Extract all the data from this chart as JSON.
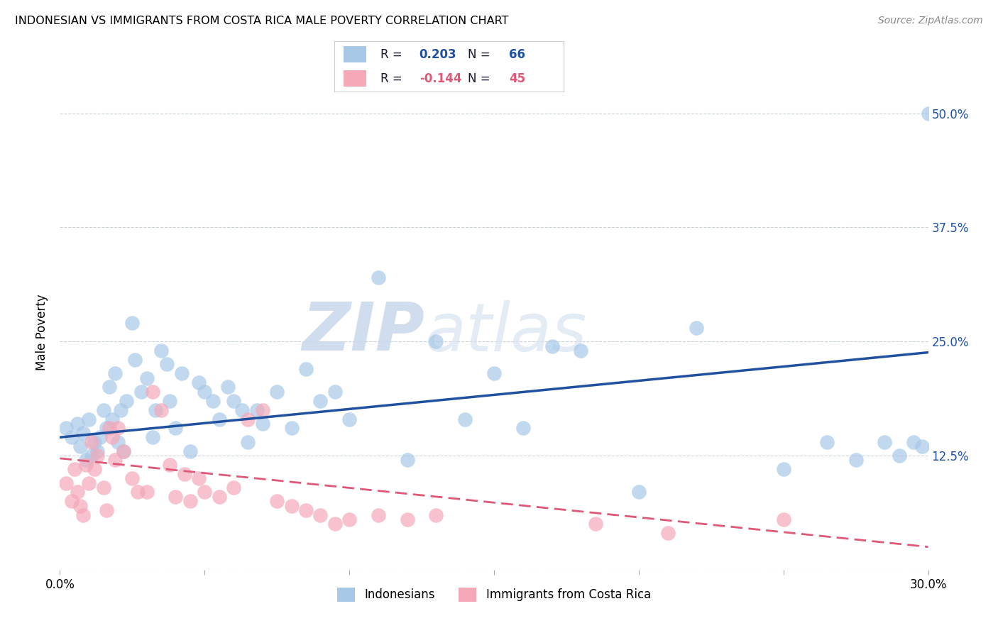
{
  "title": "INDONESIAN VS IMMIGRANTS FROM COSTA RICA MALE POVERTY CORRELATION CHART",
  "source": "Source: ZipAtlas.com",
  "ylabel": "Male Poverty",
  "ytick_vals": [
    0.0,
    0.125,
    0.25,
    0.375,
    0.5
  ],
  "ytick_labels": [
    "",
    "12.5%",
    "25.0%",
    "37.5%",
    "50.0%"
  ],
  "xtick_vals": [
    0.0,
    0.05,
    0.1,
    0.15,
    0.2,
    0.25,
    0.3
  ],
  "xtick_labels": [
    "0.0%",
    "",
    "",
    "",
    "",
    "",
    "30.0%"
  ],
  "legend_series1": "Indonesians",
  "legend_series2": "Immigrants from Costa Rica",
  "color_blue": "#A8C8E8",
  "color_pink": "#F4A8B8",
  "color_blue_line": "#2050A0",
  "color_pink_line": "#E05878",
  "color_ytick": "#2050A0",
  "color_grid": "#C8D0D8",
  "watermark_zip": "ZIP",
  "watermark_atlas": "atlas",
  "xmin": 0.0,
  "xmax": 0.3,
  "ymin": 0.0,
  "ymax": 0.52,
  "blue_line_x0": 0.0,
  "blue_line_y0": 0.145,
  "blue_line_x1": 0.3,
  "blue_line_y1": 0.238,
  "pink_line_x0": 0.0,
  "pink_line_y0": 0.122,
  "pink_line_x1": 0.3,
  "pink_line_y1": 0.025,
  "blue_points_x": [
    0.002,
    0.004,
    0.006,
    0.007,
    0.008,
    0.009,
    0.01,
    0.011,
    0.012,
    0.013,
    0.014,
    0.015,
    0.016,
    0.017,
    0.018,
    0.019,
    0.02,
    0.021,
    0.022,
    0.023,
    0.025,
    0.026,
    0.028,
    0.03,
    0.032,
    0.033,
    0.035,
    0.037,
    0.038,
    0.04,
    0.042,
    0.045,
    0.048,
    0.05,
    0.053,
    0.055,
    0.058,
    0.06,
    0.063,
    0.065,
    0.068,
    0.07,
    0.075,
    0.08,
    0.085,
    0.09,
    0.095,
    0.1,
    0.11,
    0.12,
    0.13,
    0.14,
    0.15,
    0.16,
    0.17,
    0.18,
    0.2,
    0.22,
    0.25,
    0.265,
    0.275,
    0.285,
    0.29,
    0.295,
    0.298,
    0.3
  ],
  "blue_points_y": [
    0.155,
    0.145,
    0.16,
    0.135,
    0.15,
    0.12,
    0.165,
    0.125,
    0.14,
    0.13,
    0.145,
    0.175,
    0.155,
    0.2,
    0.165,
    0.215,
    0.14,
    0.175,
    0.13,
    0.185,
    0.27,
    0.23,
    0.195,
    0.21,
    0.145,
    0.175,
    0.24,
    0.225,
    0.185,
    0.155,
    0.215,
    0.13,
    0.205,
    0.195,
    0.185,
    0.165,
    0.2,
    0.185,
    0.175,
    0.14,
    0.175,
    0.16,
    0.195,
    0.155,
    0.22,
    0.185,
    0.195,
    0.165,
    0.32,
    0.12,
    0.25,
    0.165,
    0.215,
    0.155,
    0.245,
    0.24,
    0.085,
    0.265,
    0.11,
    0.14,
    0.12,
    0.14,
    0.125,
    0.14,
    0.135,
    0.5
  ],
  "pink_points_x": [
    0.002,
    0.004,
    0.005,
    0.006,
    0.007,
    0.008,
    0.009,
    0.01,
    0.011,
    0.012,
    0.013,
    0.015,
    0.016,
    0.017,
    0.018,
    0.019,
    0.02,
    0.022,
    0.025,
    0.027,
    0.03,
    0.032,
    0.035,
    0.038,
    0.04,
    0.043,
    0.045,
    0.048,
    0.05,
    0.055,
    0.06,
    0.065,
    0.07,
    0.075,
    0.08,
    0.085,
    0.09,
    0.095,
    0.1,
    0.11,
    0.12,
    0.13,
    0.185,
    0.21,
    0.25
  ],
  "pink_points_y": [
    0.095,
    0.075,
    0.11,
    0.085,
    0.07,
    0.06,
    0.115,
    0.095,
    0.14,
    0.11,
    0.125,
    0.09,
    0.065,
    0.155,
    0.145,
    0.12,
    0.155,
    0.13,
    0.1,
    0.085,
    0.085,
    0.195,
    0.175,
    0.115,
    0.08,
    0.105,
    0.075,
    0.1,
    0.085,
    0.08,
    0.09,
    0.165,
    0.175,
    0.075,
    0.07,
    0.065,
    0.06,
    0.05,
    0.055,
    0.06,
    0.055,
    0.06,
    0.05,
    0.04,
    0.055
  ]
}
